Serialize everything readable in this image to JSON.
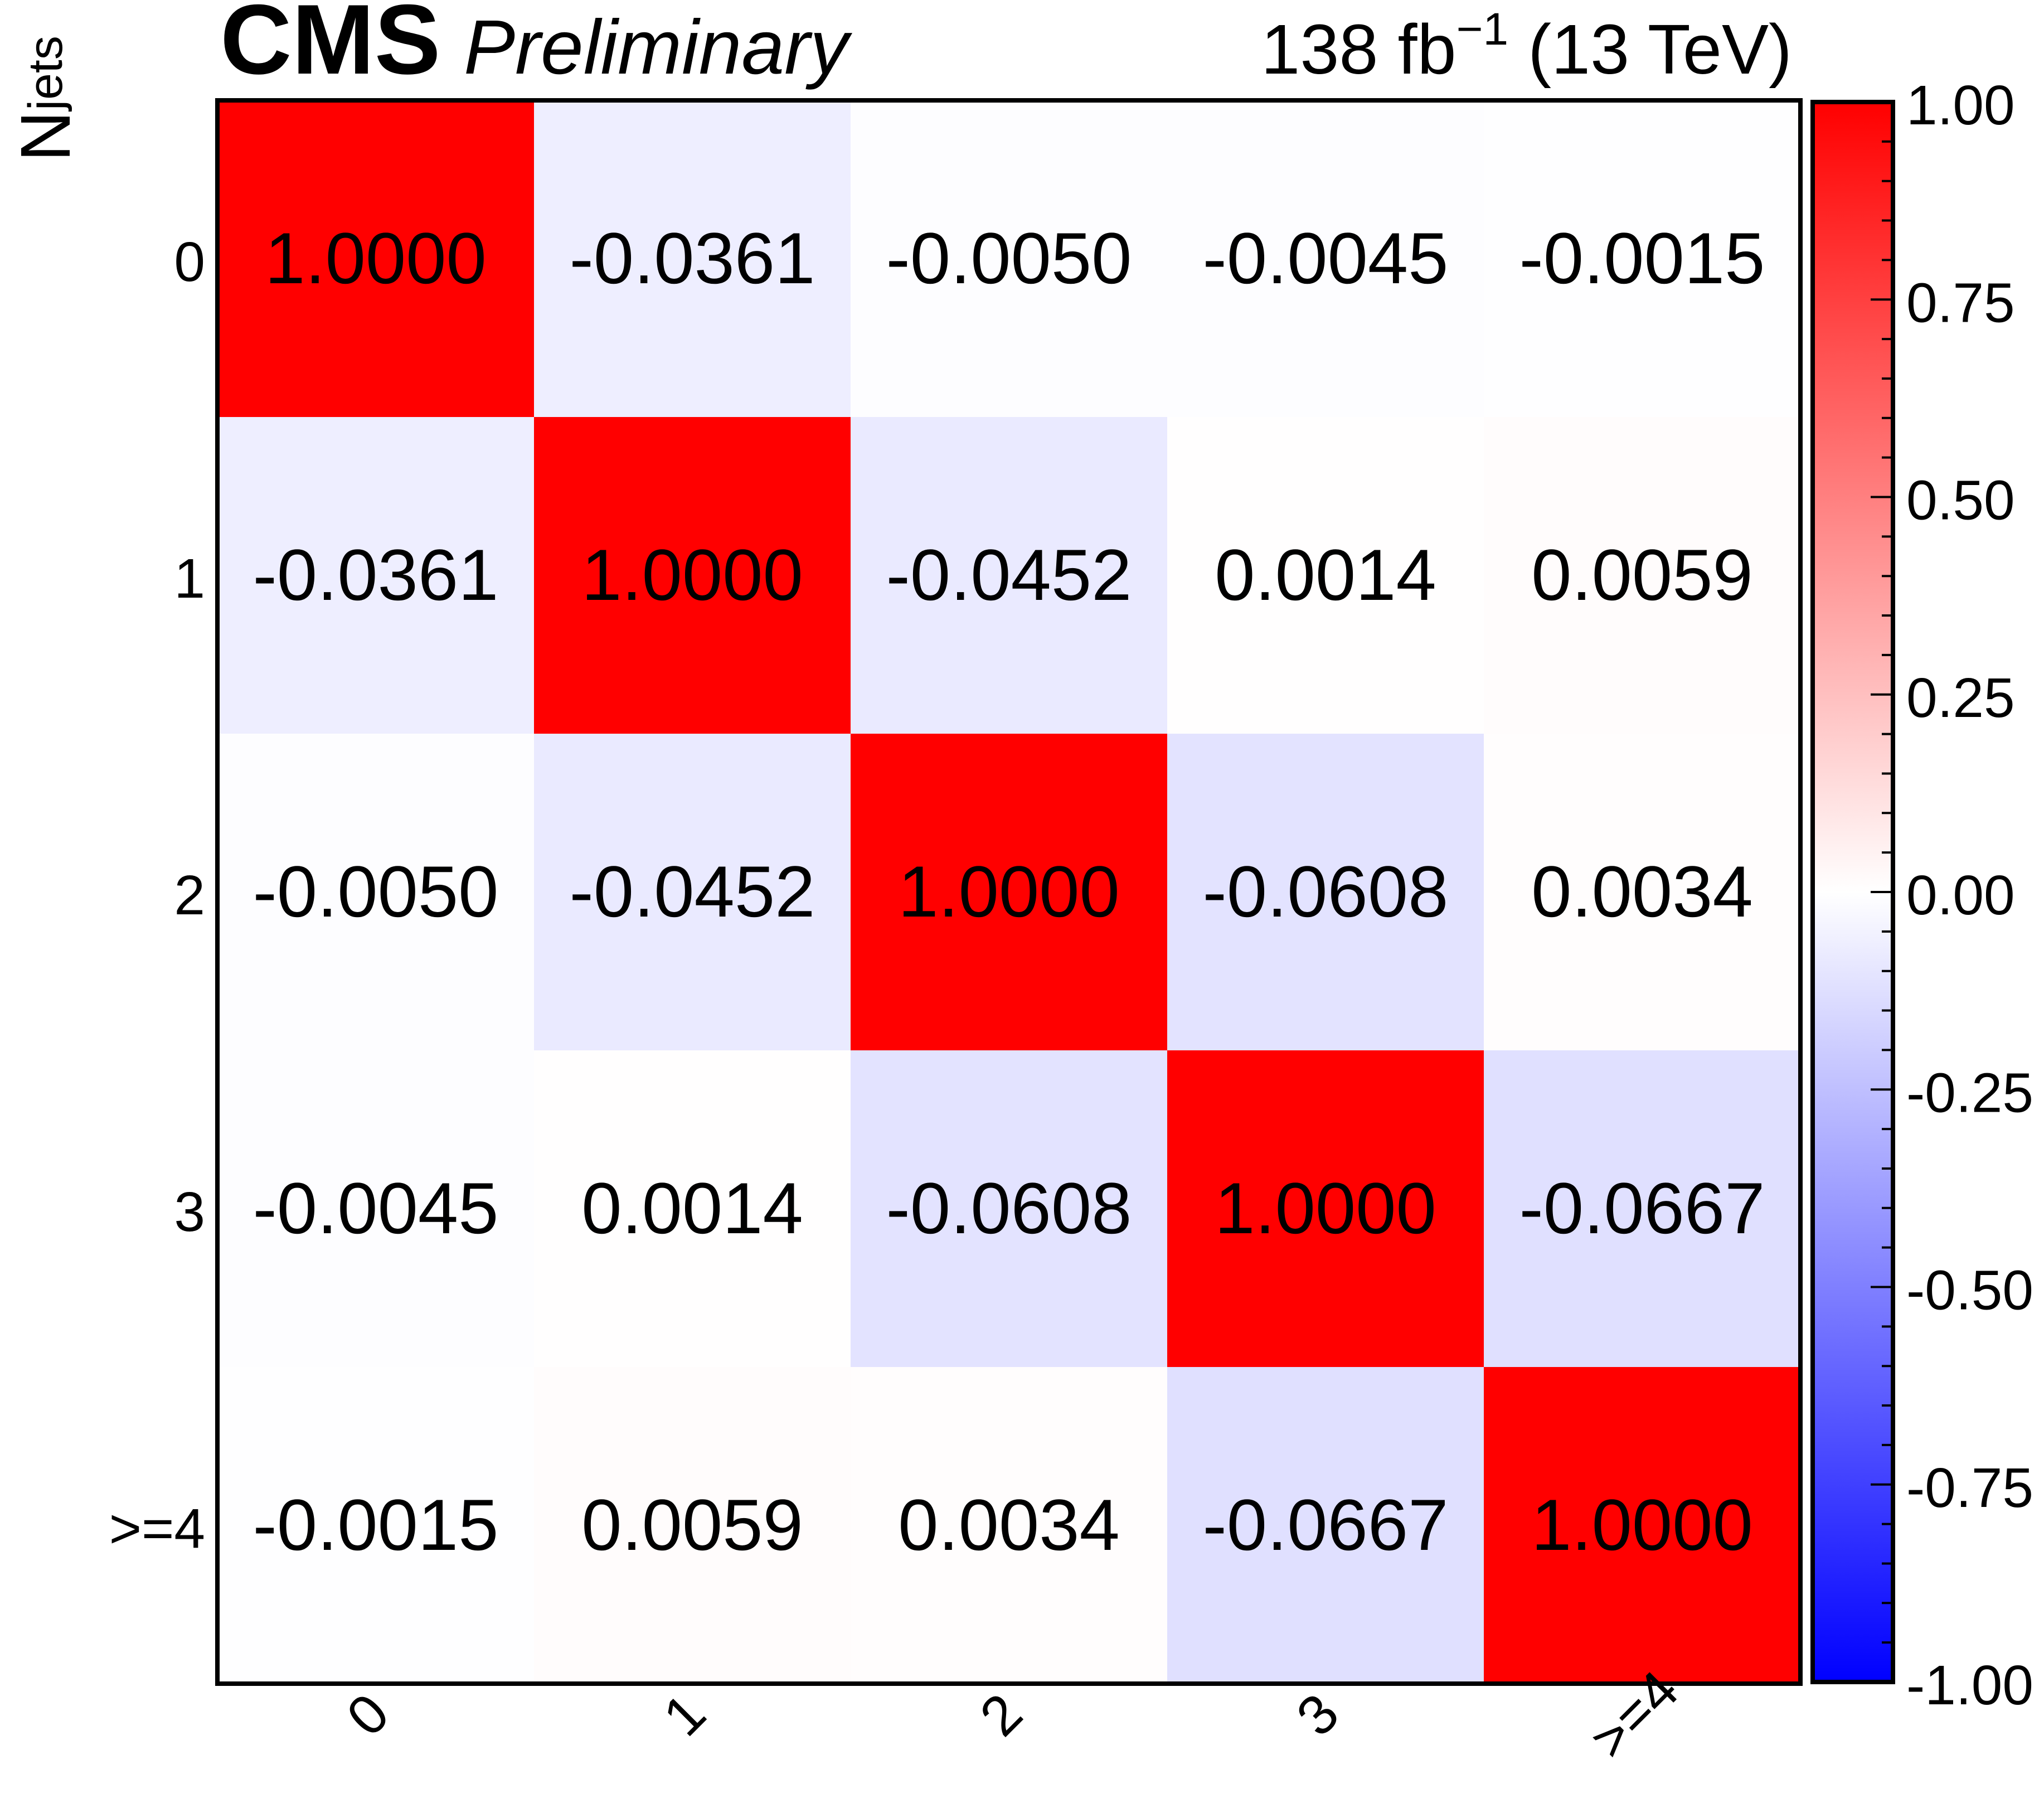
{
  "header": {
    "experiment": "CMS",
    "status": "Preliminary",
    "lumi_value": "138 fb",
    "lumi_exponent": "−1",
    "energy": " (13 TeV)"
  },
  "chart_data": {
    "type": "heatmap",
    "title": "",
    "xlabel": "",
    "ylabel_main": "N",
    "ylabel_sub": "jets",
    "x_categories": [
      "0",
      "1",
      "2",
      "3",
      ">=4"
    ],
    "y_categories": [
      "0",
      "1",
      "2",
      "3",
      ">=4"
    ],
    "values": [
      [
        1.0,
        -0.0361,
        -0.005,
        -0.0045,
        -0.0015
      ],
      [
        -0.0361,
        1.0,
        -0.0452,
        0.0014,
        0.0059
      ],
      [
        -0.005,
        -0.0452,
        1.0,
        -0.0608,
        0.0034
      ],
      [
        -0.0045,
        0.0014,
        -0.0608,
        1.0,
        -0.0667
      ],
      [
        -0.0015,
        0.0059,
        0.0034,
        -0.0667,
        1.0
      ]
    ],
    "cell_labels": [
      [
        "1.0000",
        "-0.0361",
        "-0.0050",
        "-0.0045",
        "-0.0015"
      ],
      [
        "-0.0361",
        "1.0000",
        "-0.0452",
        "0.0014",
        "0.0059"
      ],
      [
        "-0.0050",
        "-0.0452",
        "1.0000",
        "-0.0608",
        "0.0034"
      ],
      [
        "-0.0045",
        "0.0014",
        "-0.0608",
        "1.0000",
        "-0.0667"
      ],
      [
        "-0.0015",
        "0.0059",
        "0.0034",
        "-0.0667",
        "1.0000"
      ]
    ],
    "zlim": [
      -1.0,
      1.0
    ],
    "colorbar_ticks": [
      "1.00",
      "0.75",
      "0.50",
      "0.25",
      "0.00",
      "-0.25",
      "-0.50",
      "-0.75",
      "-1.00"
    ],
    "colorbar_tick_values": [
      1.0,
      0.75,
      0.5,
      0.25,
      0.0,
      -0.25,
      -0.5,
      -0.75,
      -1.0
    ],
    "colormap": {
      "low": "#0000ff",
      "mid": "#ffffff",
      "high": "#ff0000"
    },
    "grid": false,
    "legend": "colorbar-right"
  }
}
